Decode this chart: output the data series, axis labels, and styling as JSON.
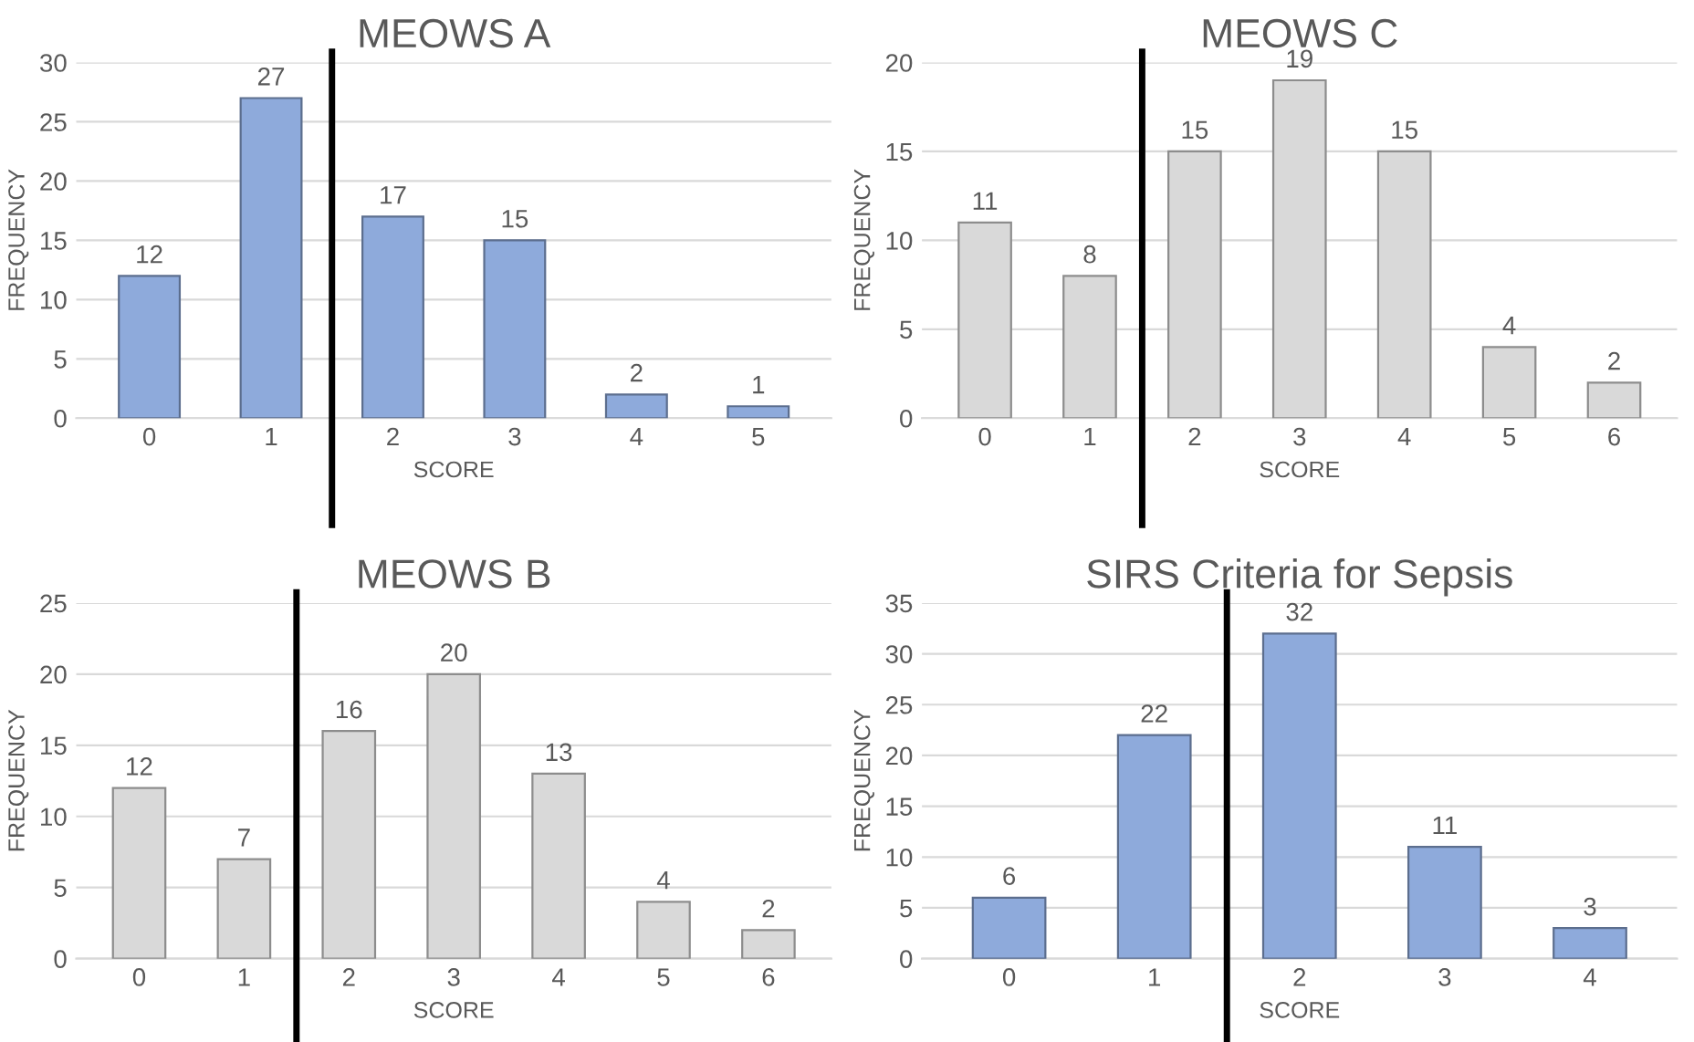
{
  "chart_data": [
    {
      "type": "bar",
      "title": "MEOWS A",
      "xlabel": "SCORE",
      "ylabel": "FREQUENCY",
      "x": [
        0,
        1,
        2,
        3,
        4,
        5
      ],
      "values": [
        12,
        27,
        17,
        15,
        2,
        1
      ],
      "color": "#8eaadb",
      "xlim": [
        -0.6,
        5.6
      ],
      "xticks": [
        0,
        1,
        2,
        3,
        4,
        5
      ],
      "ylim": [
        0,
        30
      ],
      "yticks": [
        0,
        5,
        10,
        15,
        20,
        25,
        30
      ],
      "grid": "y",
      "data_labels": true,
      "ref_lines": [
        {
          "axis": "x",
          "value": 1.5,
          "color": "#000000"
        }
      ]
    },
    {
      "type": "bar",
      "title": "MEOWS C",
      "xlabel": "SCORE",
      "ylabel": "FREQUENCY",
      "x": [
        0,
        1,
        2,
        3,
        4,
        5,
        6
      ],
      "values": [
        11,
        8,
        15,
        19,
        15,
        4,
        2
      ],
      "color": "#d9d9d9",
      "xlim": [
        -0.6,
        6.6
      ],
      "xticks": [
        0,
        1,
        2,
        3,
        4,
        5,
        6
      ],
      "ylim": [
        0,
        20
      ],
      "yticks": [
        0,
        5,
        10,
        15,
        20
      ],
      "grid": "y",
      "data_labels": true,
      "ref_lines": [
        {
          "axis": "x",
          "value": 1.5,
          "color": "#000000"
        }
      ]
    },
    {
      "type": "bar",
      "title": "MEOWS B",
      "xlabel": "SCORE",
      "ylabel": "FREQUENCY",
      "x": [
        0,
        1,
        2,
        3,
        4,
        5,
        6
      ],
      "values": [
        12,
        7,
        16,
        20,
        13,
        4,
        2
      ],
      "color": "#d9d9d9",
      "xlim": [
        -0.6,
        6.6
      ],
      "xticks": [
        0,
        1,
        2,
        3,
        4,
        5,
        6
      ],
      "ylim": [
        0,
        25
      ],
      "yticks": [
        0,
        5,
        10,
        15,
        20,
        25
      ],
      "grid": "y",
      "data_labels": true,
      "ref_lines": [
        {
          "axis": "x",
          "value": 1.5,
          "color": "#000000"
        }
      ]
    },
    {
      "type": "bar",
      "title": "SIRS Criteria for Sepsis",
      "xlabel": "SCORE",
      "ylabel": "FREQUENCY",
      "x": [
        0,
        1,
        2,
        3,
        4
      ],
      "values": [
        6,
        22,
        32,
        11,
        3
      ],
      "color": "#8eaadb",
      "xlim": [
        -0.6,
        4.6
      ],
      "xticks": [
        0,
        1,
        2,
        3,
        4
      ],
      "ylim": [
        0,
        35
      ],
      "yticks": [
        0,
        5,
        10,
        15,
        20,
        25,
        30,
        35
      ],
      "grid": "y",
      "data_labels": true,
      "ref_lines": [
        {
          "axis": "x",
          "value": 1.5,
          "color": "#000000"
        }
      ]
    }
  ]
}
